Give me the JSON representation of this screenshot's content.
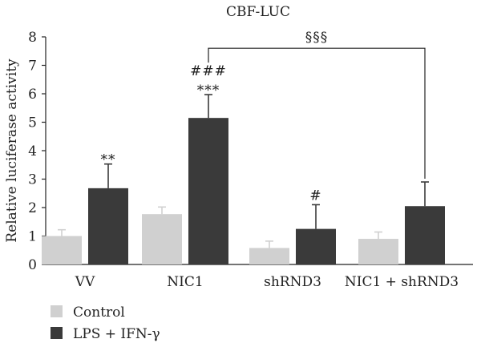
{
  "chart_data": {
    "type": "bar",
    "title": "CBF-LUC",
    "ylabel": "Relative luciferase activity",
    "xlabel": "",
    "ylim": [
      0,
      8
    ],
    "yticks": [
      "0",
      "1",
      "2",
      "3",
      "4",
      "5",
      "6",
      "7",
      "8"
    ],
    "categories": [
      "VV",
      "NIC1",
      "shRND3",
      "NIC1 + shRND3"
    ],
    "series": [
      {
        "name": "Control",
        "color": "#d0d0d0",
        "values": [
          1.0,
          1.77,
          0.58,
          0.9
        ],
        "errors": [
          0.22,
          0.25,
          0.24,
          0.24
        ]
      },
      {
        "name": "LPS + IFN-γ",
        "color": "#3a3a3a",
        "values": [
          2.68,
          5.15,
          1.25,
          2.05
        ],
        "errors": [
          0.85,
          0.82,
          0.85,
          0.85
        ]
      }
    ],
    "annotations": [
      {
        "text": "**",
        "category": 0,
        "series": 1
      },
      {
        "text": "***",
        "category": 1,
        "series": 1
      },
      {
        "text": "###",
        "category": 1,
        "series": 1
      },
      {
        "text": "#",
        "category": 2,
        "series": 1
      }
    ],
    "comparison": {
      "text": "§§§",
      "from_category": 1,
      "to_category": 3,
      "level": 7.6
    },
    "legend_position": "bottom-left",
    "grid": false
  }
}
